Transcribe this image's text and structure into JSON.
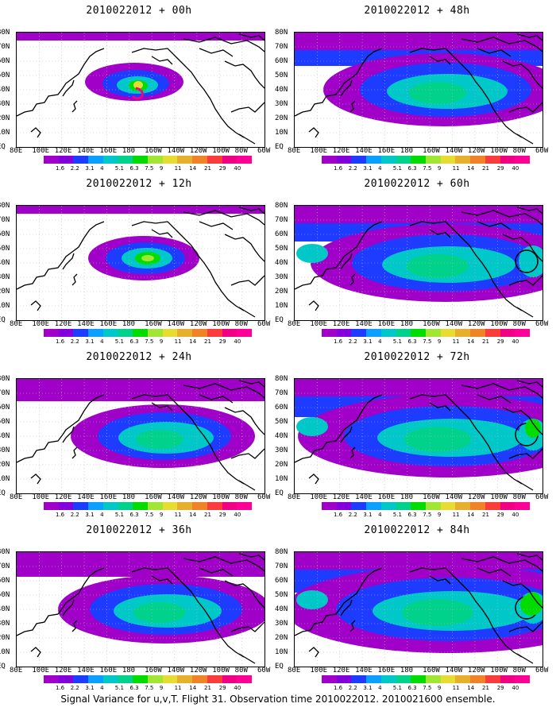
{
  "panels": [
    {
      "title": "2010022012 + 00h",
      "stage": 0
    },
    {
      "title": "2010022012 + 48h",
      "stage": 4
    },
    {
      "title": "2010022012 + 12h",
      "stage": 1
    },
    {
      "title": "2010022012 + 60h",
      "stage": 5
    },
    {
      "title": "2010022012 + 24h",
      "stage": 2
    },
    {
      "title": "2010022012 + 72h",
      "stage": 6
    },
    {
      "title": "2010022012 + 36h",
      "stage": 3
    },
    {
      "title": "2010022012 + 84h",
      "stage": 7
    }
  ],
  "lat_labels": [
    "80N",
    "70N",
    "60N",
    "50N",
    "40N",
    "30N",
    "20N",
    "10N",
    "EQ"
  ],
  "lon_labels": [
    "80E",
    "100E",
    "120E",
    "140E",
    "160E",
    "180",
    "160W",
    "140W",
    "120W",
    "100W",
    "80W",
    "60W"
  ],
  "colorbar": {
    "labels": [
      "1.6",
      "2.2",
      "3.1",
      "4",
      "5.1",
      "6.3",
      "7.5",
      "9",
      "11",
      "14",
      "21",
      "29",
      "40"
    ],
    "colors": [
      "#a000c8",
      "#8200dc",
      "#1e3cff",
      "#0aa0ff",
      "#00c8c8",
      "#00d28c",
      "#00dc00",
      "#a0e632",
      "#e6dc32",
      "#e6af2d",
      "#f08228",
      "#fa3c3c",
      "#f00082"
    ]
  },
  "caption": "Signal Variance for u,v,T. Flight 31. Observation time 2010022012. 2010021600 ensemble."
}
